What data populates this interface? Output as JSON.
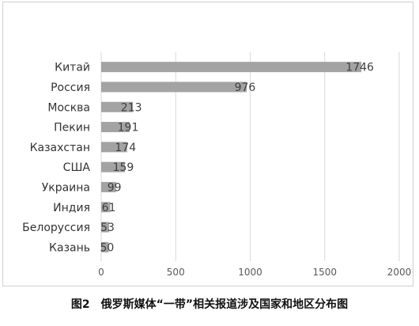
{
  "caption": "图2　俄罗斯媒体“一带”相关报道涉及国家和地区分布图",
  "colors": {
    "bar": "#a3a3a3",
    "grid": "#d9d9d9",
    "axis_text": "#595959",
    "category_text": "#333333",
    "value_text": "#404040"
  },
  "chart_data": {
    "type": "bar",
    "orientation": "horizontal",
    "title": "",
    "xlabel": "",
    "ylabel": "",
    "categories": [
      "Китай",
      "Россия",
      "Москва",
      "Пекин",
      "Казахстан",
      "США",
      "Украина",
      "Индия",
      "Белоруссия",
      "Казань"
    ],
    "values": [
      1746,
      976,
      213,
      191,
      174,
      159,
      99,
      61,
      53,
      50
    ],
    "xlim": [
      0,
      2000
    ],
    "xticks": [
      0,
      500,
      1000,
      1500,
      2000
    ],
    "grid": true,
    "legend": "none"
  }
}
